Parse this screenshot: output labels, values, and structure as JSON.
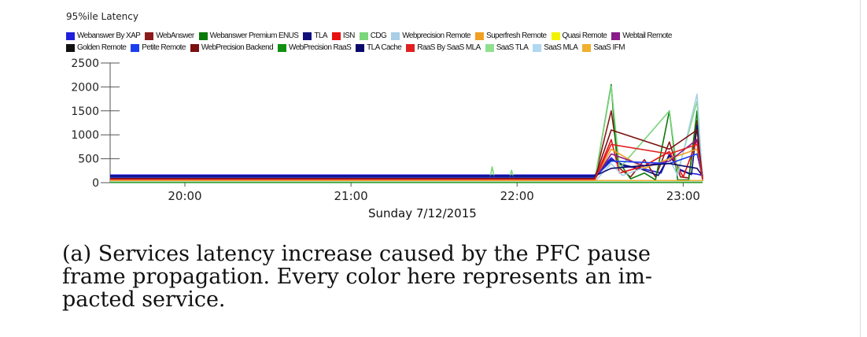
{
  "chart_data": {
    "type": "line",
    "title": "95%ile Latency",
    "xlabel": "Sunday 7/12/2015",
    "ylabel": "",
    "x_ticks": [
      "20:00",
      "21:00",
      "22:00",
      "23:00"
    ],
    "y_ticks": [
      "0",
      "500",
      "1000",
      "1500",
      "2000",
      "2500"
    ],
    "ylim": [
      0,
      2500
    ],
    "xlim": [
      "19:33",
      "23:07"
    ],
    "grid": false,
    "legend_position": "top",
    "series": [
      {
        "name": "Webanswer By XAP",
        "color": "#1f1fdd",
        "x": [
          "19:33",
          "20:30",
          "21:40",
          "22:28",
          "22:34",
          "22:36",
          "22:39",
          "22:45",
          "22:52",
          "22:55",
          "22:58",
          "23:02",
          "23:05",
          "23:07"
        ],
        "values": [
          160,
          160,
          160,
          160,
          520,
          420,
          340,
          300,
          200,
          600,
          300,
          200,
          180,
          150
        ]
      },
      {
        "name": "WebAnswer",
        "color": "#8b1a1a",
        "x": [
          "19:33",
          "22:28",
          "22:34",
          "22:37",
          "22:41",
          "22:46",
          "22:50",
          "22:55",
          "22:59",
          "23:02",
          "23:05",
          "23:07"
        ],
        "values": [
          80,
          80,
          1500,
          300,
          120,
          480,
          120,
          850,
          120,
          100,
          1300,
          80
        ]
      },
      {
        "name": "Webanswer Premium ENUS",
        "color": "#0a7a0a",
        "x": [
          "19:33",
          "22:28",
          "22:34",
          "22:36",
          "22:41",
          "22:46",
          "22:50",
          "22:55",
          "22:58",
          "23:02",
          "23:05",
          "23:07"
        ],
        "values": [
          30,
          30,
          2050,
          500,
          80,
          200,
          60,
          1500,
          60,
          60,
          1500,
          30
        ]
      },
      {
        "name": "TLA",
        "color": "#10107a",
        "x": [
          "19:33",
          "22:28",
          "22:34",
          "22:38",
          "22:45",
          "22:51",
          "22:55",
          "22:59",
          "23:03",
          "23:05",
          "23:07"
        ],
        "values": [
          120,
          120,
          480,
          380,
          280,
          150,
          560,
          260,
          170,
          1200,
          130
        ]
      },
      {
        "name": "ISN",
        "color": "#e81010",
        "x": [
          "19:33",
          "22:28",
          "22:34",
          "22:37",
          "22:46",
          "22:55",
          "23:00",
          "23:05",
          "23:07"
        ],
        "values": [
          60,
          60,
          900,
          200,
          350,
          650,
          120,
          900,
          60
        ]
      },
      {
        "name": "CDG",
        "color": "#7cd67c",
        "x": [
          "19:33",
          "21:50",
          "21:51",
          "21:52",
          "21:57",
          "21:58",
          "21:59",
          "22:28",
          "22:34",
          "22:37",
          "22:55",
          "22:58",
          "23:05",
          "23:07"
        ],
        "values": [
          40,
          40,
          330,
          40,
          40,
          260,
          40,
          40,
          2020,
          300,
          1500,
          200,
          1700,
          60
        ]
      },
      {
        "name": "Webprecision Remote",
        "color": "#a8cfe6",
        "x": [
          "19:33",
          "22:28",
          "22:34",
          "22:38",
          "22:55",
          "22:58",
          "23:05",
          "23:07"
        ],
        "values": [
          20,
          20,
          400,
          150,
          500,
          150,
          1850,
          40
        ]
      },
      {
        "name": "Superfresh Remote",
        "color": "#f0a020",
        "x": [
          "19:33",
          "22:28",
          "22:34",
          "22:46",
          "22:55",
          "23:05",
          "23:07"
        ],
        "values": [
          50,
          50,
          700,
          300,
          500,
          700,
          50
        ]
      },
      {
        "name": "Quasi Remote",
        "color": "#f2f200",
        "x": [
          "19:33",
          "23:07"
        ],
        "values": [
          15,
          15
        ]
      },
      {
        "name": "Webtail Remote",
        "color": "#8a1a8a",
        "x": [
          "19:33",
          "22:28",
          "22:34",
          "22:46",
          "22:55",
          "23:05",
          "23:07"
        ],
        "values": [
          70,
          70,
          600,
          350,
          450,
          900,
          70
        ]
      },
      {
        "name": "Golden Remote",
        "color": "#111111",
        "x": [
          "19:33",
          "23:07"
        ],
        "values": [
          10,
          10
        ]
      },
      {
        "name": "Petite Remote",
        "color": "#1a3ef0",
        "x": [
          "19:33",
          "22:28",
          "22:34",
          "22:55",
          "23:05",
          "23:07"
        ],
        "values": [
          110,
          110,
          450,
          400,
          600,
          110
        ]
      },
      {
        "name": "WebPrecision Backend",
        "color": "#7a1010",
        "x": [
          "19:33",
          "22:28",
          "22:34",
          "22:55",
          "23:05",
          "23:07"
        ],
        "values": [
          90,
          90,
          1100,
          700,
          1100,
          90
        ]
      },
      {
        "name": "WebPrecision RaaS",
        "color": "#109010",
        "x": [
          "19:33",
          "23:07"
        ],
        "values": [
          5,
          5
        ]
      },
      {
        "name": "TLA Cache",
        "color": "#0a0a6a",
        "x": [
          "19:33",
          "22:28",
          "22:34",
          "22:55",
          "23:05",
          "23:07"
        ],
        "values": [
          140,
          140,
          300,
          400,
          300,
          140
        ]
      },
      {
        "name": "RaaS By SaaS MLA",
        "color": "#e02020",
        "x": [
          "19:33",
          "22:28",
          "22:34",
          "22:55",
          "23:05",
          "23:07"
        ],
        "values": [
          65,
          65,
          800,
          600,
          800,
          65
        ]
      },
      {
        "name": "SaaS TLA",
        "color": "#90e090",
        "x": [
          "19:33",
          "23:07"
        ],
        "values": [
          25,
          25
        ]
      },
      {
        "name": "SaaS MLA",
        "color": "#b0d8f0",
        "x": [
          "19:33",
          "23:07"
        ],
        "values": [
          35,
          35
        ]
      },
      {
        "name": "SaaS IFM",
        "color": "#f0b030",
        "x": [
          "19:33",
          "23:07"
        ],
        "values": [
          45,
          45
        ]
      }
    ]
  },
  "caption": {
    "line1": "(a) Services latency increase caused by the PFC pause",
    "line2": "frame propagation. Every color here represents an im-",
    "line3": "pacted service."
  }
}
